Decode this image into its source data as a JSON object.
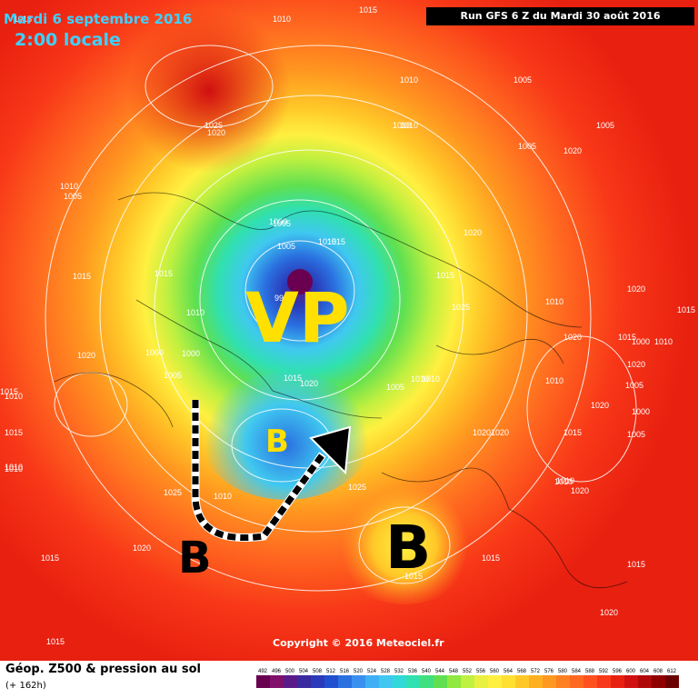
{
  "header": {
    "date": "Mardi 6 septembre 2016",
    "time": "2:00 locale",
    "run": "Run GFS 6 Z du Mardi 30 août 2016"
  },
  "copyright": "Copyright © 2016 Meteociel.fr",
  "footer": {
    "title": "Géop. Z500 & pression au sol",
    "subtitle": "(+ 162h)"
  },
  "scale_labels": [
    "492",
    "496",
    "500",
    "504",
    "508",
    "512",
    "516",
    "520",
    "524",
    "528",
    "532",
    "536",
    "540",
    "544",
    "548",
    "552",
    "556",
    "560",
    "564",
    "568",
    "572",
    "576",
    "580",
    "584",
    "588",
    "592",
    "596",
    "600",
    "604",
    "608",
    "612"
  ],
  "scale_colors": [
    "#6a0050",
    "#80106a",
    "#5a1a8a",
    "#3a2aa0",
    "#2a3ab8",
    "#2050d0",
    "#2a70e0",
    "#3a90f0",
    "#40b0f5",
    "#40c8f0",
    "#30d8d8",
    "#30e0b0",
    "#40e080",
    "#60e050",
    "#90e840",
    "#c0f040",
    "#e8f040",
    "#fff040",
    "#ffe030",
    "#ffc828",
    "#ffb020",
    "#ff9820",
    "#ff8020",
    "#ff6820",
    "#ff5020",
    "#f83818",
    "#e82010",
    "#d01010",
    "#b00808",
    "#900000",
    "#6a0000"
  ],
  "annotations": {
    "vp": "VP",
    "b_center": "B",
    "b_left": "B",
    "b_bottom": "B"
  },
  "pressure_labels": [
    {
      "t": "1010"
    },
    {
      "t": "1015"
    },
    {
      "t": "1015"
    },
    {
      "t": "1010"
    },
    {
      "t": "1005"
    },
    {
      "t": "1005"
    },
    {
      "t": "1010"
    },
    {
      "t": "1020"
    },
    {
      "t": "1025"
    },
    {
      "t": "1010"
    },
    {
      "t": "1005"
    },
    {
      "t": "1005"
    },
    {
      "t": "1015"
    },
    {
      "t": "1015"
    },
    {
      "t": "1010"
    },
    {
      "t": "1000"
    },
    {
      "t": "1000"
    },
    {
      "t": "1005"
    },
    {
      "t": "1005"
    },
    {
      "t": "1000"
    },
    {
      "t": "1015"
    },
    {
      "t": "1020"
    },
    {
      "t": "1015"
    },
    {
      "t": "1025"
    },
    {
      "t": "1005"
    },
    {
      "t": "1010"
    },
    {
      "t": "1020"
    },
    {
      "t": "1015"
    },
    {
      "t": "1020"
    },
    {
      "t": "1010"
    },
    {
      "t": "1020"
    },
    {
      "t": "1000"
    },
    {
      "t": "1005"
    },
    {
      "t": "1015"
    },
    {
      "t": "1010"
    },
    {
      "t": "1020"
    },
    {
      "t": "1020"
    },
    {
      "t": "1025"
    },
    {
      "t": "1010"
    },
    {
      "t": "1020"
    },
    {
      "t": "1010"
    },
    {
      "t": "1015"
    },
    {
      "t": "1015"
    },
    {
      "t": "1010"
    },
    {
      "t": "1025"
    },
    {
      "t": "1010"
    },
    {
      "t": "1020"
    },
    {
      "t": "1015"
    },
    {
      "t": "1020"
    },
    {
      "t": "1015"
    },
    {
      "t": "1015"
    },
    {
      "t": "1015"
    },
    {
      "t": "1015"
    },
    {
      "t": "1020"
    },
    {
      "t": "1010"
    },
    {
      "t": "1005"
    },
    {
      "t": "1015"
    },
    {
      "t": "995"
    },
    {
      "t": "1010"
    },
    {
      "t": "1015"
    },
    {
      "t": "1020"
    },
    {
      "t": "1020"
    },
    {
      "t": "1010"
    },
    {
      "t": "1005"
    },
    {
      "t": "1000"
    },
    {
      "t": "1010"
    },
    {
      "t": "1010"
    },
    {
      "t": "1020"
    },
    {
      "t": "1015"
    }
  ]
}
